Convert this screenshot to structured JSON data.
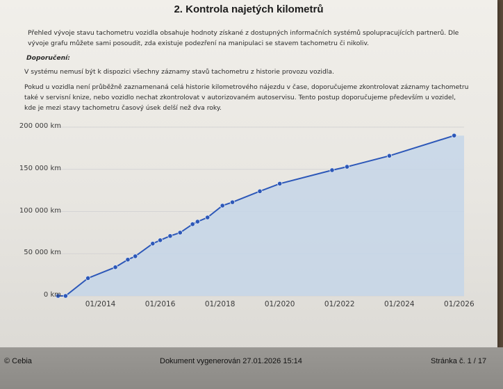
{
  "page": {
    "title": "2. Kontrola najetých kilometrů",
    "intro": "Přehled vývoje stavu tachometru vozidla obsahuje hodnoty získané z dostupných informačních systémů spolupracujících partnerů. Dle vývoje grafu můžete sami posoudit, zda existuje podezření na manipulaci se stavem tachometru či nikoliv.",
    "recommendation_heading": "Doporučení:",
    "recommendation_1": "V systému nemusí být k dispozici všechny záznamy stavů tachometru z historie provozu vozidla.",
    "recommendation_2": "Pokud u vozidla není průběžně zaznamenaná celá historie kilometrového nájezdu v čase, doporučujeme zkontrolovat záznamy tachometru také v servisní knize, nebo vozidlo nechat zkontrolovat v autorizovaném autoservisu. Tento postup doporučujeme především u vozidel, kde je mezi stavy tachometru časový úsek delší než dva roky."
  },
  "footer": {
    "copyright": "© Cebia",
    "generated": "Dokument vygenerován 27.01.2026 15:14",
    "page_number": "Stránka č. 1 / 17"
  },
  "colors": {
    "line": "#2c57b8",
    "area": "#c3d5e8",
    "grid": "#d4d4d4",
    "point": "#2c57b8"
  },
  "chart_data": {
    "type": "area",
    "title": "",
    "xlabel": "",
    "ylabel": "",
    "ylim": [
      0,
      200000
    ],
    "y_ticks": [
      {
        "value": 0,
        "label": "0 km"
      },
      {
        "value": 50000,
        "label": "50 000 km"
      },
      {
        "value": 100000,
        "label": "100 000 km"
      },
      {
        "value": 150000,
        "label": "150 000 km"
      },
      {
        "value": 200000,
        "label": "200 000 km"
      }
    ],
    "xlim": [
      "2012-07",
      "2026-03"
    ],
    "x_ticks": [
      {
        "date": "2014-01",
        "label": "01/2014"
      },
      {
        "date": "2016-01",
        "label": "01/2016"
      },
      {
        "date": "2018-01",
        "label": "01/2018"
      },
      {
        "date": "2020-01",
        "label": "01/2020"
      },
      {
        "date": "2022-01",
        "label": "01/2022"
      },
      {
        "date": "2024-01",
        "label": "01/2024"
      },
      {
        "date": "2026-01",
        "label": "01/2026"
      }
    ],
    "grid": true,
    "series": [
      {
        "points": [
          {
            "x": "2012-08",
            "y": 0
          },
          {
            "x": "2012-11",
            "y": 0
          },
          {
            "x": "2013-08",
            "y": 21000
          },
          {
            "x": "2014-07",
            "y": 34000
          },
          {
            "x": "2014-12",
            "y": 43000
          },
          {
            "x": "2015-03",
            "y": 47000
          },
          {
            "x": "2015-10",
            "y": 62000
          },
          {
            "x": "2016-01",
            "y": 66000
          },
          {
            "x": "2016-05",
            "y": 71000
          },
          {
            "x": "2016-09",
            "y": 75000
          },
          {
            "x": "2017-02",
            "y": 85000
          },
          {
            "x": "2017-04",
            "y": 88000
          },
          {
            "x": "2017-08",
            "y": 93000
          },
          {
            "x": "2018-02",
            "y": 107000
          },
          {
            "x": "2018-06",
            "y": 111000
          },
          {
            "x": "2019-05",
            "y": 124000
          },
          {
            "x": "2020-01",
            "y": 133000
          },
          {
            "x": "2021-10",
            "y": 149000
          },
          {
            "x": "2022-04",
            "y": 153000
          },
          {
            "x": "2023-09",
            "y": 166000
          },
          {
            "x": "2025-11",
            "y": 190000
          }
        ]
      }
    ]
  }
}
